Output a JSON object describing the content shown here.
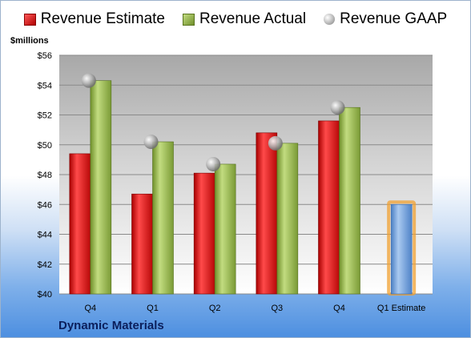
{
  "legend": {
    "estimate": "Revenue Estimate",
    "actual": "Revenue Actual",
    "gaap": "Revenue GAAP"
  },
  "unit_label": "$millions",
  "company": "Dynamic Materials",
  "colors": {
    "estimate": "#d42020",
    "actual": "#8fae48",
    "gaap": "#b0b0b0",
    "forecast": "#6f9fdc",
    "forecast_glow": "#f0a030"
  },
  "chart_data": {
    "type": "bar",
    "categories": [
      "Q4",
      "Q1",
      "Q2",
      "Q3",
      "Q4",
      "Q1 Estimate"
    ],
    "series": [
      {
        "name": "Revenue Estimate",
        "values": [
          49.4,
          46.7,
          48.1,
          50.8,
          51.6,
          null
        ]
      },
      {
        "name": "Revenue Actual",
        "values": [
          54.3,
          50.2,
          48.7,
          50.1,
          52.5,
          46.0
        ]
      },
      {
        "name": "Revenue GAAP",
        "values": [
          54.3,
          50.2,
          48.7,
          50.1,
          52.5,
          null
        ]
      }
    ],
    "ylabel": "$millions",
    "ylim": [
      40,
      56
    ],
    "yticks": [
      "$40",
      "$42",
      "$44",
      "$46",
      "$48",
      "$50",
      "$52",
      "$54",
      "$56"
    ],
    "grid": true,
    "legend_position": "top"
  }
}
